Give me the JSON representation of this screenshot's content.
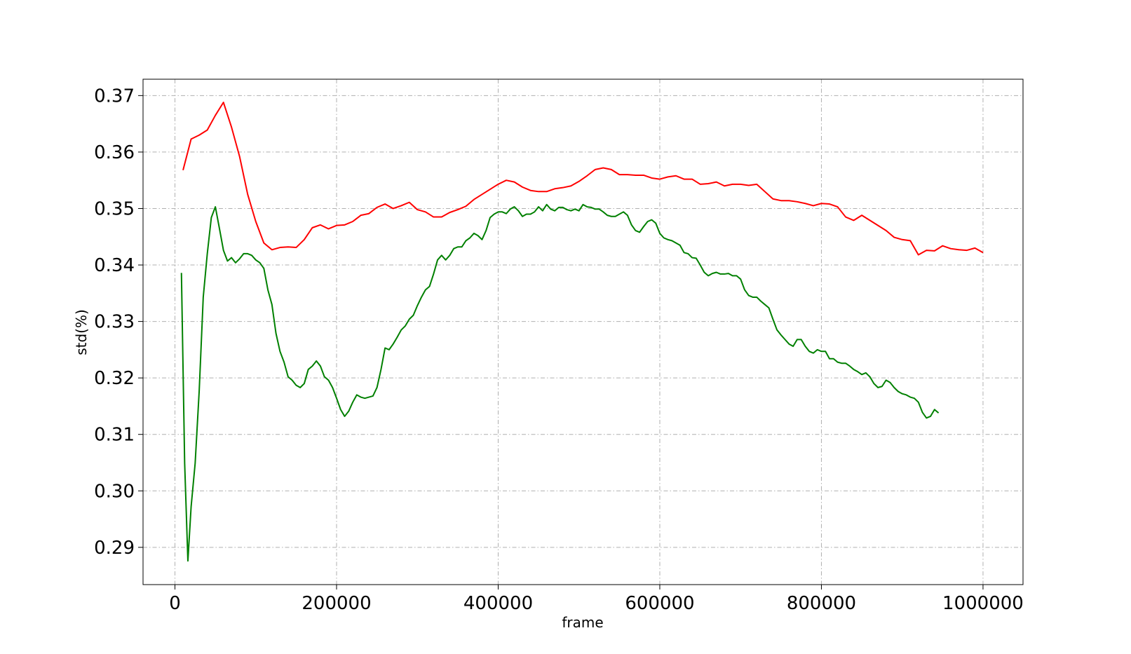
{
  "chart_data": {
    "type": "line",
    "xlabel": "frame",
    "ylabel": "std(%)",
    "grid": true,
    "xlim": [
      -39500,
      1049500
    ],
    "ylim": [
      0.2834,
      0.3729
    ],
    "xticks": [
      0,
      200000,
      400000,
      600000,
      800000,
      1000000
    ],
    "yticks": [
      0.29,
      {
        "value": 0.3,
        "label": "0.30"
      },
      0.31,
      0.32,
      0.33,
      0.34,
      0.35,
      0.36,
      0.37
    ],
    "series": [
      {
        "color": "#ff0000",
        "x": [
          10000,
          20000,
          30000,
          40000,
          50000,
          60000,
          70000,
          80000,
          90000,
          100000,
          110000,
          120000,
          130000,
          140000,
          150000,
          160000,
          170000,
          180000,
          190000,
          200000,
          210000,
          220000,
          230000,
          240000,
          250000,
          260000,
          270000,
          280000,
          290000,
          300000,
          310000,
          320000,
          330000,
          340000,
          350000,
          360000,
          370000,
          380000,
          390000,
          400000,
          410000,
          420000,
          430000,
          440000,
          450000,
          460000,
          470000,
          480000,
          490000,
          500000,
          510000,
          520000,
          530000,
          540000,
          550000,
          560000,
          570000,
          580000,
          590000,
          600000,
          610000,
          620000,
          630000,
          640000,
          650000,
          660000,
          670000,
          680000,
          690000,
          700000,
          710000,
          720000,
          730000,
          740000,
          750000,
          760000,
          770000,
          780000,
          790000,
          800000,
          810000,
          820000,
          830000,
          840000,
          850000,
          860000,
          870000,
          880000,
          890000,
          900000,
          910000,
          920000,
          930000,
          940000,
          950000,
          960000,
          970000,
          980000,
          990000,
          1000000
        ],
        "values": [
          0.3568,
          0.3623,
          0.363,
          0.3639,
          0.3665,
          0.3688,
          0.3644,
          0.3592,
          0.3525,
          0.3477,
          0.3439,
          0.3427,
          0.3431,
          0.3432,
          0.3431,
          0.3445,
          0.3466,
          0.3471,
          0.3464,
          0.347,
          0.3471,
          0.3477,
          0.3488,
          0.3491,
          0.3502,
          0.3508,
          0.35,
          0.3505,
          0.3511,
          0.3498,
          0.3494,
          0.3485,
          0.3485,
          0.3493,
          0.3498,
          0.3504,
          0.3516,
          0.3525,
          0.3534,
          0.3543,
          0.355,
          0.3547,
          0.3538,
          0.3532,
          0.353,
          0.353,
          0.3535,
          0.3537,
          0.354,
          0.3548,
          0.3558,
          0.3569,
          0.3572,
          0.3569,
          0.356,
          0.356,
          0.3559,
          0.3559,
          0.3554,
          0.3552,
          0.3556,
          0.3558,
          0.3552,
          0.3552,
          0.3543,
          0.3544,
          0.3547,
          0.354,
          0.3543,
          0.3543,
          0.3541,
          0.3543,
          0.353,
          0.3517,
          0.3514,
          0.3514,
          0.3512,
          0.3509,
          0.3505,
          0.3509,
          0.3508,
          0.3503,
          0.3485,
          0.3479,
          0.3488,
          0.3479,
          0.347,
          0.3461,
          0.3449,
          0.3445,
          0.3443,
          0.3418,
          0.3426,
          0.3425,
          0.3434,
          0.3429,
          0.3427,
          0.3426,
          0.343,
          0.3422
        ]
      },
      {
        "color": "#008000",
        "x": [
          8000,
          12000,
          16000,
          20000,
          25000,
          30000,
          35000,
          40000,
          45000,
          50000,
          55000,
          60000,
          65000,
          70000,
          75000,
          80000,
          85000,
          90000,
          95000,
          100000,
          105000,
          110000,
          115000,
          120000,
          125000,
          130000,
          135000,
          140000,
          145000,
          150000,
          155000,
          160000,
          165000,
          170000,
          175000,
          180000,
          185000,
          190000,
          195000,
          200000,
          205000,
          210000,
          215000,
          220000,
          225000,
          230000,
          235000,
          240000,
          245000,
          250000,
          255000,
          260000,
          265000,
          270000,
          275000,
          280000,
          285000,
          290000,
          295000,
          300000,
          305000,
          310000,
          315000,
          320000,
          325000,
          330000,
          335000,
          340000,
          345000,
          350000,
          355000,
          360000,
          365000,
          370000,
          375000,
          380000,
          385000,
          390000,
          395000,
          400000,
          405000,
          410000,
          415000,
          420000,
          425000,
          430000,
          435000,
          440000,
          445000,
          450000,
          455000,
          460000,
          465000,
          470000,
          475000,
          480000,
          485000,
          490000,
          495000,
          500000,
          505000,
          510000,
          515000,
          520000,
          525000,
          530000,
          535000,
          540000,
          545000,
          550000,
          555000,
          560000,
          565000,
          570000,
          575000,
          580000,
          585000,
          590000,
          595000,
          600000,
          605000,
          610000,
          615000,
          620000,
          625000,
          630000,
          635000,
          640000,
          645000,
          650000,
          655000,
          660000,
          665000,
          670000,
          675000,
          680000,
          685000,
          690000,
          695000,
          700000,
          705000,
          710000,
          715000,
          720000,
          725000,
          730000,
          735000,
          740000,
          745000,
          750000,
          755000,
          760000,
          765000,
          770000,
          775000,
          780000,
          785000,
          790000,
          795000,
          800000,
          805000,
          810000,
          815000,
          820000,
          825000,
          830000,
          835000,
          840000,
          845000,
          850000,
          855000,
          860000,
          865000,
          870000,
          875000,
          880000,
          885000,
          890000,
          895000,
          900000,
          905000,
          910000,
          915000,
          920000,
          925000,
          930000,
          935000,
          940000,
          945000
        ],
        "values": [
          0.3386,
          0.3049,
          0.2876,
          0.2972,
          0.3049,
          0.3177,
          0.3343,
          0.342,
          0.3484,
          0.3503,
          0.3465,
          0.3426,
          0.3407,
          0.3413,
          0.3404,
          0.3411,
          0.342,
          0.342,
          0.3417,
          0.3409,
          0.3404,
          0.3394,
          0.3356,
          0.333,
          0.3279,
          0.3247,
          0.3228,
          0.3202,
          0.3196,
          0.3187,
          0.3183,
          0.319,
          0.3215,
          0.3221,
          0.323,
          0.3221,
          0.3202,
          0.3196,
          0.3183,
          0.3164,
          0.3144,
          0.3132,
          0.3141,
          0.3157,
          0.317,
          0.3166,
          0.3164,
          0.3166,
          0.3168,
          0.3183,
          0.3215,
          0.3253,
          0.325,
          0.326,
          0.3272,
          0.3285,
          0.3292,
          0.3304,
          0.3311,
          0.3328,
          0.3343,
          0.3356,
          0.3362,
          0.3384,
          0.3409,
          0.3417,
          0.3409,
          0.3417,
          0.3429,
          0.3432,
          0.3432,
          0.3443,
          0.3448,
          0.3456,
          0.3452,
          0.3445,
          0.3461,
          0.3484,
          0.349,
          0.3494,
          0.3494,
          0.3491,
          0.3499,
          0.3503,
          0.3496,
          0.3486,
          0.349,
          0.349,
          0.3494,
          0.3503,
          0.3496,
          0.3507,
          0.3499,
          0.3496,
          0.3502,
          0.3502,
          0.3498,
          0.3496,
          0.3499,
          0.3496,
          0.3507,
          0.3503,
          0.3502,
          0.3499,
          0.3499,
          0.3494,
          0.3488,
          0.3486,
          0.3486,
          0.349,
          0.3494,
          0.3488,
          0.3471,
          0.3461,
          0.3458,
          0.3468,
          0.3477,
          0.348,
          0.3474,
          0.3456,
          0.3448,
          0.3445,
          0.3443,
          0.3439,
          0.3435,
          0.3422,
          0.342,
          0.3413,
          0.3412,
          0.34,
          0.3387,
          0.3381,
          0.3385,
          0.3387,
          0.3384,
          0.3384,
          0.3385,
          0.3381,
          0.3381,
          0.3375,
          0.3356,
          0.3346,
          0.3343,
          0.3343,
          0.3336,
          0.333,
          0.3324,
          0.3304,
          0.3285,
          0.3276,
          0.3268,
          0.326,
          0.3256,
          0.3268,
          0.3268,
          0.3256,
          0.3247,
          0.3244,
          0.325,
          0.3247,
          0.3247,
          0.3234,
          0.3234,
          0.3228,
          0.3226,
          0.3226,
          0.3221,
          0.3215,
          0.3211,
          0.3206,
          0.3209,
          0.3202,
          0.319,
          0.3183,
          0.3185,
          0.3196,
          0.3192,
          0.3183,
          0.3176,
          0.3172,
          0.317,
          0.3166,
          0.3164,
          0.3157,
          0.3139,
          0.3129,
          0.3132,
          0.3144,
          0.3138
        ]
      }
    ]
  }
}
